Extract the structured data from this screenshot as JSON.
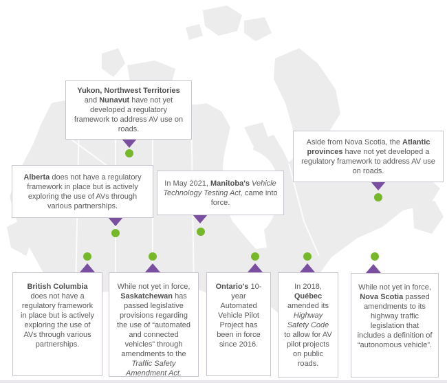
{
  "colors": {
    "arrow_purple": "#7b4fa0",
    "marker_green": "#76b82a",
    "box_border": "#c9c3ce",
    "text_gray": "#58595b",
    "map_fill": "#ececec",
    "background": "#ffffff"
  },
  "callouts": {
    "yukon": {
      "region": "Yukon, Northwest Territories and Nunavut",
      "segments": [
        {
          "text": "Yukon, Northwest Territories",
          "style": "bold"
        },
        {
          "text": " and ",
          "style": "normal"
        },
        {
          "text": "Nunavut",
          "style": "bold"
        },
        {
          "text": " have not yet developed a regulatory framework to address AV use on roads.",
          "style": "normal"
        }
      ]
    },
    "alberta": {
      "region": "Alberta",
      "segments": [
        {
          "text": "Alberta",
          "style": "bold"
        },
        {
          "text": " does not have a regulatory framework in place but is actively exploring the use of AVs through various partnerships.",
          "style": "normal"
        }
      ]
    },
    "manitoba": {
      "region": "Manitoba",
      "segments": [
        {
          "text": "In May 2021, ",
          "style": "normal"
        },
        {
          "text": "Manitoba's",
          "style": "bold"
        },
        {
          "text": " ",
          "style": "normal"
        },
        {
          "text": "Vehicle Technology Testing Act,",
          "style": "italic"
        },
        {
          "text": " came into force.",
          "style": "normal"
        }
      ]
    },
    "atlantic": {
      "region": "Atlantic provinces",
      "segments": [
        {
          "text": "Aside from Nova Scotia, the ",
          "style": "normal"
        },
        {
          "text": "Atlantic provinces",
          "style": "bold"
        },
        {
          "text": " have not yet developed a regulatory framework to address AV use on roads.",
          "style": "normal"
        }
      ]
    },
    "bc": {
      "region": "British Columbia",
      "segments": [
        {
          "text": "British Columbia",
          "style": "bold"
        },
        {
          "text": " does not have a regulatory framework in place but is actively exploring the use of AVs through various partnerships.",
          "style": "normal"
        }
      ]
    },
    "saskatchewan": {
      "region": "Saskatchewan",
      "segments": [
        {
          "text": "While not yet in force, ",
          "style": "normal"
        },
        {
          "text": "Saskatchewan",
          "style": "bold"
        },
        {
          "text": " has passed legislative provisions regarding the use of “automated and connected vehicles” through amendments to the ",
          "style": "normal"
        },
        {
          "text": "Traffic Safety Amendment Act.",
          "style": "italic"
        }
      ]
    },
    "ontario": {
      "region": "Ontario",
      "segments": [
        {
          "text": "Ontario's",
          "style": "bold"
        },
        {
          "text": " 10-year Automated Vehicle Pilot Project has been in force since 2016.",
          "style": "normal"
        }
      ]
    },
    "quebec": {
      "region": "Québec",
      "segments": [
        {
          "text": "In 2018, ",
          "style": "normal"
        },
        {
          "text": "Québec",
          "style": "bold"
        },
        {
          "text": " amended its ",
          "style": "normal"
        },
        {
          "text": "Highway Safety Code",
          "style": "italic"
        },
        {
          "text": " to allow for AV pilot projects on public roads.",
          "style": "normal"
        }
      ]
    },
    "nova_scotia": {
      "region": "Nova Scotia",
      "segments": [
        {
          "text": "While not yet in force, ",
          "style": "normal"
        },
        {
          "text": "Nova Scotia",
          "style": "bold"
        },
        {
          "text": " passed amendments to its highway traffic legislation that includes a definition of “autonomous vehicle”.",
          "style": "normal"
        }
      ]
    }
  }
}
